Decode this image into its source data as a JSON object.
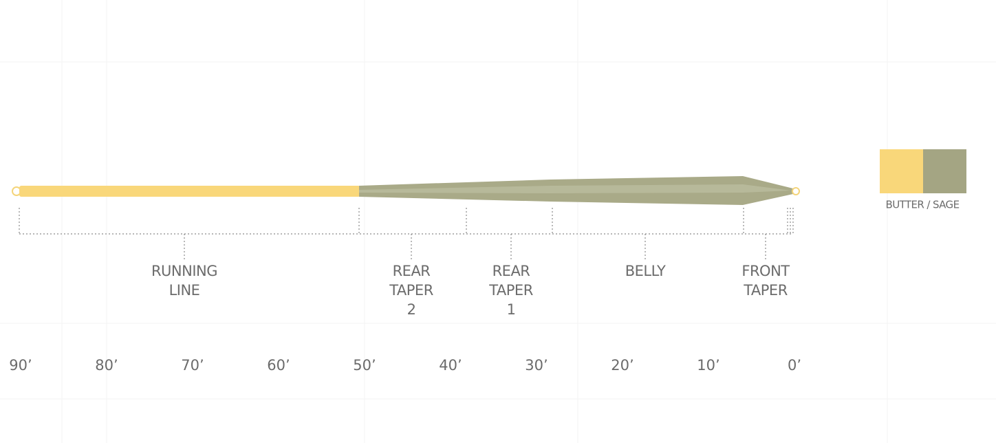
{
  "sections": [
    {
      "label": [
        "RUNNING",
        "LINE"
      ]
    },
    {
      "label": [
        "REAR",
        "TAPER",
        "2"
      ]
    },
    {
      "label": [
        "REAR",
        "TAPER",
        "1"
      ]
    },
    {
      "label": [
        "BELLY"
      ]
    },
    {
      "label": [
        "FRONT",
        "TAPER"
      ]
    }
  ],
  "scale": [
    "90’",
    "80’",
    "70’",
    "60’",
    "50’",
    "40’",
    "30’",
    "20’",
    "10’",
    "0’"
  ],
  "swatch": {
    "label": "BUTTER / SAGE"
  }
}
